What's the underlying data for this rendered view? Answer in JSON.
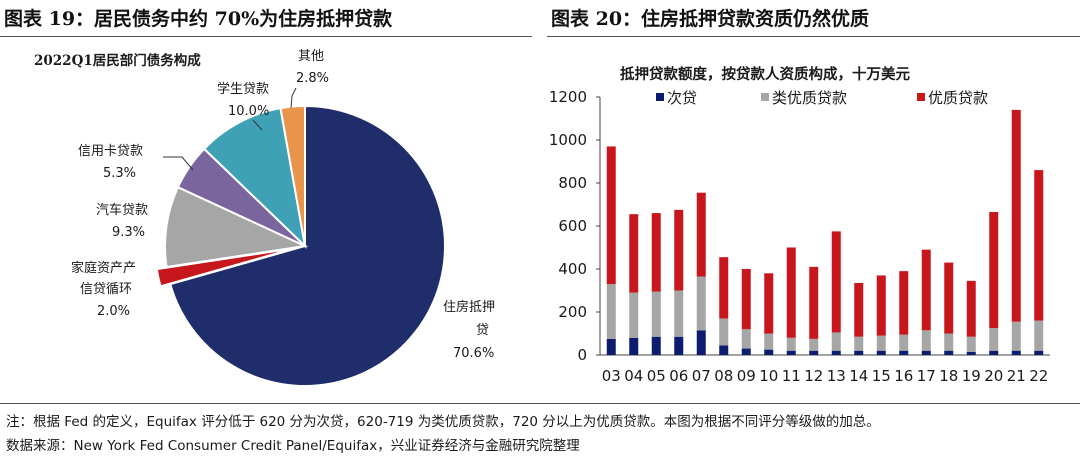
{
  "figure_left": {
    "title": "图表 19：居民债务中约 70%为住房抵押贷款"
  },
  "figure_right": {
    "title": "图表 20：住房抵押贷款资质仍然优质"
  },
  "footnotes": {
    "note": "注：根据 Fed 的定义，Equifax 评分低于 620 分为次贷，620-719 为类优质贷款，720 分以上为优质贷款。本图为根据不同评分等级做的加总。",
    "source": "数据来源：New York Fed Consumer Credit Panel/Equifax，兴业证券经济与金融研究院整理"
  },
  "chart_data": [
    {
      "type": "pie",
      "title": "2022Q1居民部门债务构成",
      "slices": [
        {
          "label": "住房抵押贷款",
          "value": 70.6,
          "value_label": "70.6%",
          "color": "#1f2d6b"
        },
        {
          "label": "家庭资产产信贷循环",
          "value": 2.0,
          "value_label": "2.0%",
          "color": "#c8161d"
        },
        {
          "label": "汽车贷款",
          "value": 9.3,
          "value_label": "9.3%",
          "color": "#a6a6a6"
        },
        {
          "label": "信用卡贷款",
          "value": 5.3,
          "value_label": "5.3%",
          "color": "#7a659f"
        },
        {
          "label": "学生贷款",
          "value": 10.0,
          "value_label": "10.0%",
          "color": "#3fa1b5"
        },
        {
          "label": "其他",
          "value": 2.8,
          "value_label": "2.8%",
          "color": "#e9944b"
        }
      ]
    },
    {
      "type": "bar",
      "stacked": true,
      "title": "抵押贷款额度，按贷款人资质构成，十万美元",
      "categories": [
        "03",
        "04",
        "05",
        "06",
        "07",
        "08",
        "09",
        "10",
        "11",
        "12",
        "13",
        "14",
        "15",
        "16",
        "17",
        "18",
        "19",
        "20",
        "21",
        "22"
      ],
      "ylim": [
        0,
        1200
      ],
      "yticks": [
        0,
        200,
        400,
        600,
        800,
        1000,
        1200
      ],
      "legend_position": "top",
      "series": [
        {
          "name": "次贷",
          "color": "#0c1c6e",
          "values": [
            75,
            80,
            85,
            85,
            115,
            45,
            30,
            25,
            20,
            20,
            20,
            20,
            20,
            20,
            20,
            20,
            15,
            20,
            20,
            20
          ]
        },
        {
          "name": "类优质贷款",
          "color": "#a6a6a6",
          "values": [
            255,
            210,
            210,
            215,
            250,
            125,
            90,
            75,
            60,
            55,
            85,
            65,
            70,
            75,
            95,
            80,
            70,
            105,
            135,
            140
          ]
        },
        {
          "name": "优质贷款",
          "color": "#c8161d",
          "values": [
            640,
            365,
            365,
            375,
            390,
            285,
            280,
            280,
            420,
            335,
            470,
            250,
            280,
            295,
            375,
            330,
            260,
            540,
            985,
            700
          ]
        }
      ]
    }
  ]
}
